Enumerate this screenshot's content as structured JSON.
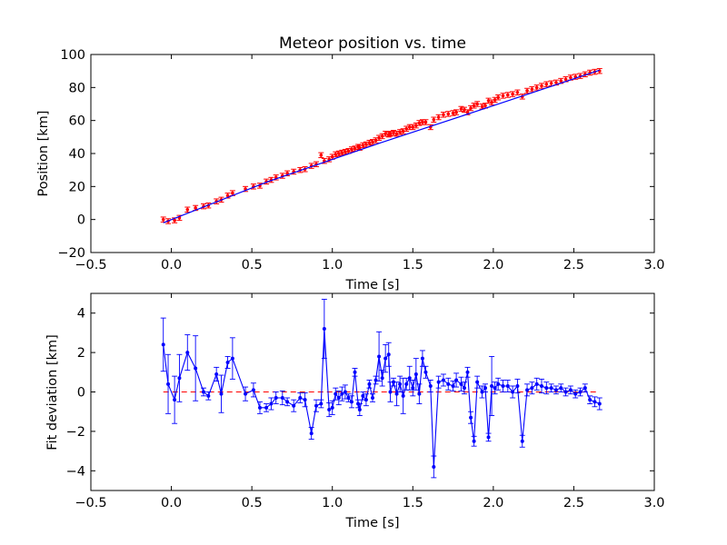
{
  "chart_data": [
    {
      "type": "scatter",
      "title": "Meteor position vs. time",
      "xlabel": "Time [s]",
      "ylabel": "Position [km]",
      "xlim": [
        -0.5,
        3.0
      ],
      "ylim": [
        -20,
        100
      ],
      "xticks": [
        "−0.5",
        "0.0",
        "0.5",
        "1.0",
        "1.5",
        "2.0",
        "2.5",
        "3.0"
      ],
      "yticks": [
        "−20",
        "0",
        "20",
        "40",
        "60",
        "80",
        "100"
      ],
      "xtick_values": [
        -0.5,
        0.0,
        0.5,
        1.0,
        1.5,
        2.0,
        2.5,
        3.0
      ],
      "ytick_values": [
        -20,
        0,
        20,
        40,
        60,
        80,
        100
      ],
      "grid": false,
      "series": [
        {
          "kind": "errorbar-points",
          "color": "#ff0000",
          "yerr": 1.5,
          "x": [
            -0.05,
            -0.02,
            0.02,
            0.05,
            0.1,
            0.15,
            0.2,
            0.23,
            0.28,
            0.31,
            0.35,
            0.38,
            0.46,
            0.51,
            0.55,
            0.59,
            0.62,
            0.65,
            0.69,
            0.72,
            0.76,
            0.8,
            0.83,
            0.87,
            0.9,
            0.93,
            0.95,
            0.98,
            1.0,
            1.02,
            1.04,
            1.06,
            1.08,
            1.1,
            1.12,
            1.14,
            1.16,
            1.17,
            1.19,
            1.21,
            1.23,
            1.25,
            1.27,
            1.29,
            1.31,
            1.33,
            1.35,
            1.36,
            1.38,
            1.4,
            1.42,
            1.44,
            1.46,
            1.48,
            1.5,
            1.52,
            1.54,
            1.56,
            1.58,
            1.61,
            1.63,
            1.66,
            1.69,
            1.72,
            1.75,
            1.77,
            1.8,
            1.82,
            1.84,
            1.86,
            1.88,
            1.9,
            1.93,
            1.95,
            1.97,
            1.99,
            2.01,
            2.03,
            2.06,
            2.09,
            2.12,
            2.15,
            2.18,
            2.21,
            2.24,
            2.27,
            2.3,
            2.33,
            2.36,
            2.39,
            2.42,
            2.45,
            2.48,
            2.51,
            2.54,
            2.57,
            2.6,
            2.63,
            2.66
          ],
          "y": [
            0,
            -1,
            -0.5,
            1,
            6,
            7,
            8,
            8.5,
            11,
            12,
            14.5,
            16,
            18.5,
            20,
            20.5,
            23,
            24,
            25.5,
            26.5,
            28,
            29,
            30,
            30.5,
            32.5,
            33.5,
            39,
            35.5,
            36.5,
            38,
            39.5,
            40,
            40.5,
            41,
            41.5,
            42.5,
            43,
            44,
            43.5,
            45,
            45.5,
            46.5,
            47,
            48,
            49.5,
            50.5,
            52,
            51.5,
            52,
            52.5,
            52,
            53,
            53.5,
            55,
            56,
            56,
            57,
            58.5,
            59,
            59,
            56,
            60.5,
            62,
            63.5,
            64,
            64.5,
            65,
            67,
            66.5,
            65,
            67.5,
            69,
            70,
            68.5,
            69,
            72,
            71,
            72.5,
            74,
            75,
            75.5,
            76,
            77,
            74.5,
            78,
            79,
            80,
            81,
            82,
            82.5,
            83,
            84,
            85,
            86,
            86.5,
            87,
            88,
            89,
            89.5,
            90
          ]
        },
        {
          "kind": "fit-line",
          "color": "#0000ff",
          "x": [
            -0.05,
            0.6,
            1.3,
            2.0,
            2.66
          ],
          "y": [
            -2.0,
            23.0,
            46.5,
            69.0,
            90.5
          ]
        }
      ]
    },
    {
      "type": "line",
      "title": "",
      "xlabel": "Time [s]",
      "ylabel": "Fit deviation [km]",
      "xlim": [
        -0.5,
        3.0
      ],
      "ylim": [
        -5,
        5
      ],
      "xticks": [
        "−0.5",
        "0.0",
        "0.5",
        "1.0",
        "1.5",
        "2.0",
        "2.5",
        "3.0"
      ],
      "yticks": [
        "−4",
        "−2",
        "0",
        "2",
        "4"
      ],
      "xtick_values": [
        -0.5,
        0.0,
        0.5,
        1.0,
        1.5,
        2.0,
        2.5,
        3.0
      ],
      "ytick_values": [
        -4,
        -2,
        0,
        2,
        4
      ],
      "grid": false,
      "reference_line": {
        "y": 0,
        "color": "#ff0000",
        "style": "dashed"
      },
      "series": [
        {
          "kind": "errorbar-line",
          "color": "#0000ff",
          "x": [
            -0.05,
            -0.02,
            0.02,
            0.05,
            0.1,
            0.15,
            0.2,
            0.23,
            0.28,
            0.31,
            0.35,
            0.38,
            0.46,
            0.51,
            0.55,
            0.59,
            0.62,
            0.65,
            0.69,
            0.72,
            0.76,
            0.8,
            0.83,
            0.87,
            0.9,
            0.93,
            0.95,
            0.98,
            1.0,
            1.02,
            1.04,
            1.06,
            1.08,
            1.1,
            1.12,
            1.14,
            1.16,
            1.17,
            1.19,
            1.21,
            1.23,
            1.25,
            1.27,
            1.29,
            1.31,
            1.33,
            1.35,
            1.36,
            1.38,
            1.4,
            1.42,
            1.44,
            1.46,
            1.48,
            1.5,
            1.52,
            1.54,
            1.56,
            1.58,
            1.61,
            1.63,
            1.66,
            1.69,
            1.72,
            1.75,
            1.77,
            1.8,
            1.82,
            1.84,
            1.86,
            1.88,
            1.9,
            1.93,
            1.95,
            1.97,
            1.99,
            2.01,
            2.03,
            2.06,
            2.09,
            2.12,
            2.15,
            2.18,
            2.21,
            2.24,
            2.27,
            2.3,
            2.33,
            2.36,
            2.39,
            2.42,
            2.45,
            2.48,
            2.51,
            2.54,
            2.57,
            2.6,
            2.63,
            2.66
          ],
          "y": [
            2.4,
            0.4,
            -0.4,
            0.7,
            2.0,
            1.2,
            0.0,
            -0.2,
            0.9,
            -0.1,
            1.5,
            1.7,
            -0.1,
            0.1,
            -0.8,
            -0.8,
            -0.6,
            -0.3,
            -0.3,
            -0.5,
            -0.7,
            -0.3,
            -0.4,
            -2.1,
            -0.7,
            -0.6,
            3.2,
            -0.9,
            -0.8,
            -0.1,
            -0.3,
            -0.1,
            0.0,
            -0.3,
            -0.5,
            1.0,
            -0.6,
            -0.9,
            -0.2,
            -0.4,
            0.4,
            -0.3,
            0.6,
            1.8,
            0.7,
            1.7,
            1.9,
            0.0,
            0.5,
            -0.1,
            0.4,
            -0.2,
            0.4,
            0.7,
            0.2,
            0.9,
            -0.1,
            1.7,
            1.0,
            0.3,
            -3.8,
            0.5,
            0.6,
            0.4,
            0.3,
            0.6,
            0.4,
            0.2,
            1.0,
            -1.3,
            -2.5,
            0.5,
            0.0,
            0.2,
            -2.3,
            0.3,
            0.2,
            0.4,
            0.3,
            0.3,
            0.0,
            0.3,
            -2.5,
            0.1,
            0.2,
            0.4,
            0.3,
            0.2,
            0.2,
            0.1,
            0.2,
            0.0,
            0.1,
            -0.1,
            0.0,
            0.2,
            -0.4,
            -0.5,
            -0.6
          ],
          "yerr": [
            1.35,
            1.5,
            1.2,
            1.2,
            0.9,
            1.65,
            0.2,
            0.2,
            0.35,
            0.95,
            0.3,
            1.05,
            0.35,
            0.35,
            0.3,
            0.2,
            0.3,
            0.3,
            0.35,
            0.2,
            0.3,
            0.25,
            0.35,
            0.3,
            0.3,
            0.2,
            1.5,
            0.35,
            0.35,
            0.3,
            0.35,
            0.35,
            0.35,
            0.2,
            0.3,
            0.2,
            0.2,
            0.3,
            0.2,
            0.3,
            0.2,
            0.2,
            0.2,
            1.25,
            0.4,
            0.7,
            0.6,
            0.5,
            0.2,
            0.6,
            0.4,
            0.9,
            0.3,
            0.6,
            0.4,
            0.8,
            0.5,
            0.4,
            0.3,
            0.3,
            0.55,
            0.3,
            0.3,
            0.3,
            0.25,
            0.35,
            0.35,
            0.3,
            0.25,
            0.3,
            0.25,
            0.3,
            0.3,
            0.2,
            0.2,
            1.5,
            0.3,
            0.3,
            0.3,
            0.3,
            0.3,
            0.35,
            0.3,
            0.3,
            0.3,
            0.3,
            0.35,
            0.3,
            0.2,
            0.2,
            0.2,
            0.2,
            0.2,
            0.2,
            0.2,
            0.2,
            0.2,
            0.25,
            0.3
          ]
        }
      ]
    }
  ]
}
